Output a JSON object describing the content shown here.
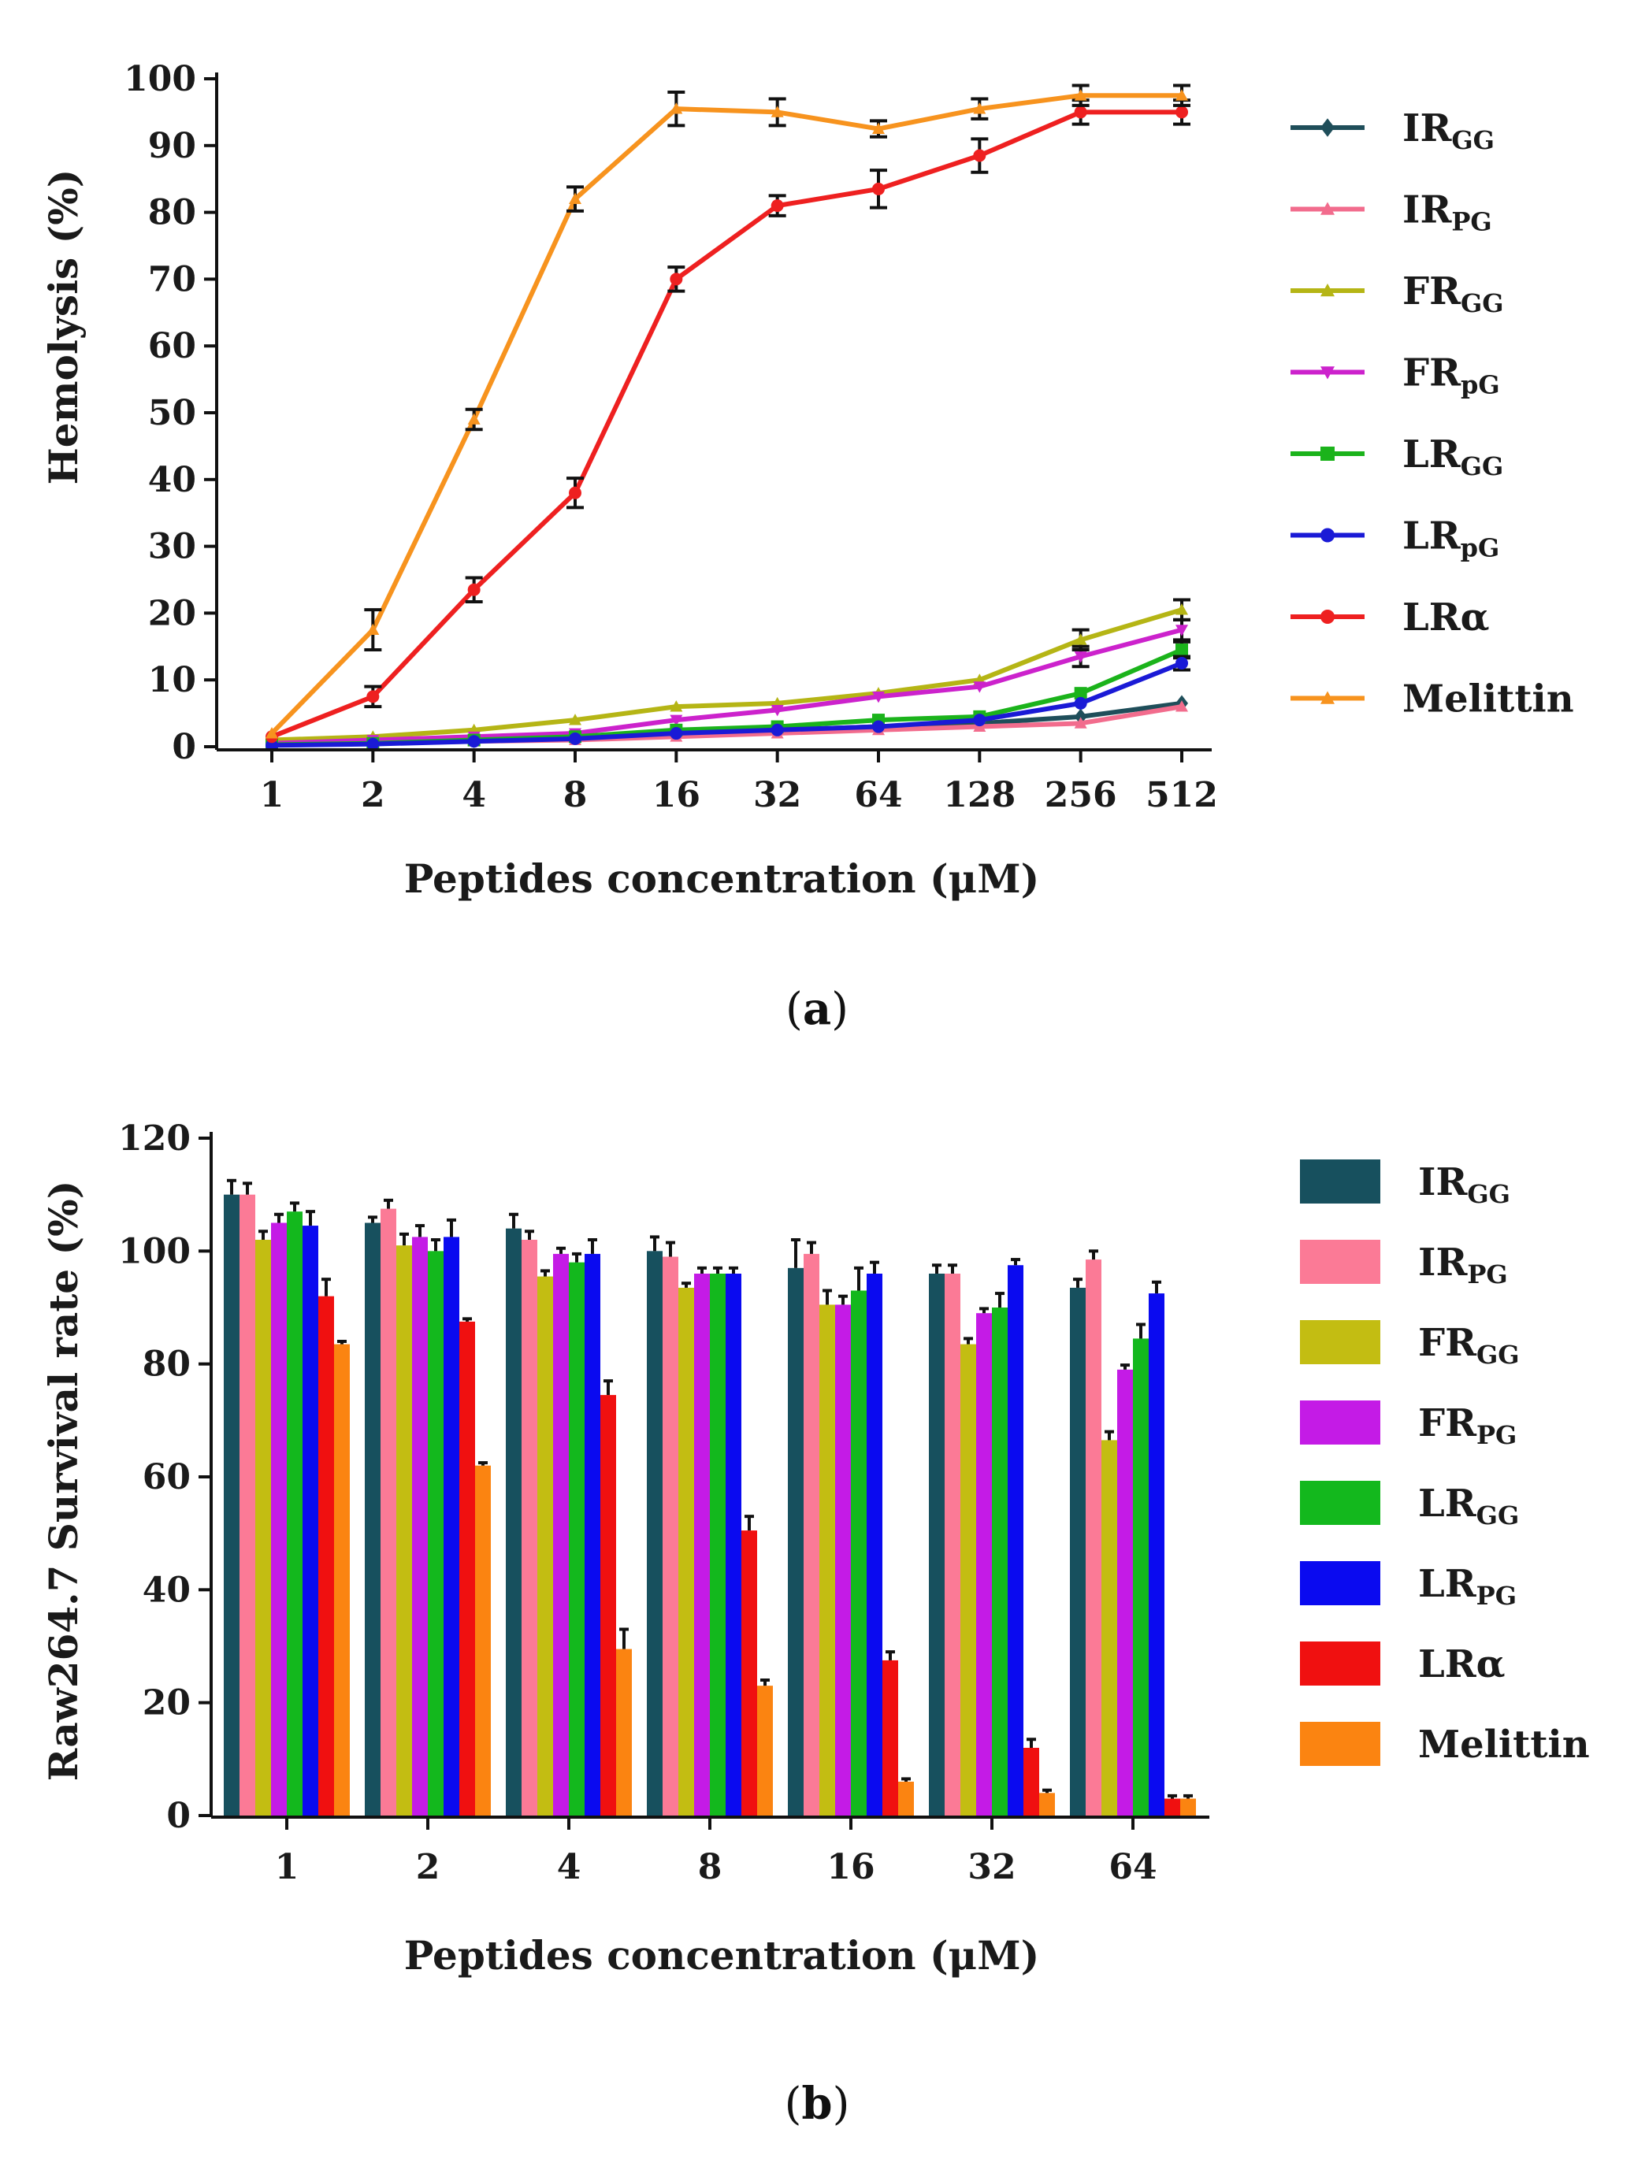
{
  "chart_data": [
    {
      "type": "line",
      "panel": "(a)",
      "panel_bold": "a",
      "ylabel": "Hemolysis (%)",
      "xlabel": "Peptides concentration (μM)",
      "categories": [
        "1",
        "2",
        "4",
        "8",
        "16",
        "32",
        "64",
        "128",
        "256",
        "512"
      ],
      "ylim": [
        0,
        100
      ],
      "yticks": [
        "0",
        "10",
        "20",
        "30",
        "40",
        "50",
        "60",
        "70",
        "80",
        "90",
        "100"
      ],
      "grid": false,
      "legend_position": "right",
      "series": [
        {
          "name": "IR",
          "sub": "GG",
          "color": "#1f4e5a",
          "marker": "diamond",
          "values": [
            0.5,
            0.8,
            1.0,
            1.5,
            2.0,
            2.5,
            3.0,
            3.5,
            4.5,
            6.5
          ],
          "errors": [
            0.3,
            0.3,
            0.3,
            0.3,
            0.4,
            0.4,
            0.4,
            0.5,
            0.5,
            0.6
          ]
        },
        {
          "name": "IR",
          "sub": "PG",
          "color": "#f26c8d",
          "marker": "triangle",
          "values": [
            0.3,
            0.5,
            0.8,
            1.0,
            1.5,
            2.0,
            2.5,
            3.0,
            3.5,
            6.0
          ],
          "errors": [
            0.2,
            0.3,
            0.3,
            0.3,
            0.3,
            0.3,
            0.4,
            0.4,
            0.5,
            0.6
          ]
        },
        {
          "name": "FR",
          "sub": "GG",
          "color": "#b5b515",
          "marker": "triangle",
          "values": [
            1.0,
            1.5,
            2.5,
            4.0,
            6.0,
            6.5,
            8.0,
            10.0,
            16.0,
            20.5
          ],
          "errors": [
            0.3,
            0.4,
            0.4,
            0.5,
            0.5,
            0.6,
            0.6,
            0.7,
            1.5,
            1.5
          ]
        },
        {
          "name": "FR",
          "sub": "pG",
          "color": "#cc22cc",
          "marker": "triangle-down",
          "values": [
            0.5,
            1.0,
            1.5,
            2.0,
            4.0,
            5.5,
            7.5,
            9.0,
            13.5,
            17.5
          ],
          "errors": [
            0.3,
            0.3,
            0.4,
            0.4,
            0.5,
            0.5,
            0.6,
            0.6,
            1.5,
            1.5
          ]
        },
        {
          "name": "LR",
          "sub": "GG",
          "color": "#1bb31b",
          "marker": "square",
          "values": [
            0.3,
            0.5,
            1.0,
            1.5,
            2.5,
            3.0,
            4.0,
            4.5,
            8.0,
            14.5
          ],
          "errors": [
            0.2,
            0.3,
            0.3,
            0.3,
            0.4,
            0.4,
            0.5,
            0.5,
            0.8,
            1.2
          ]
        },
        {
          "name": "LR",
          "sub": "pG",
          "color": "#1a1ad6",
          "marker": "circle",
          "values": [
            0.2,
            0.4,
            0.8,
            1.2,
            2.0,
            2.5,
            3.0,
            4.0,
            6.5,
            12.5
          ],
          "errors": [
            0.2,
            0.2,
            0.3,
            0.3,
            0.3,
            0.4,
            0.4,
            0.5,
            0.8,
            1.0
          ]
        },
        {
          "name": "LRα",
          "sub": "",
          "color": "#ee2020",
          "marker": "circle",
          "values": [
            1.5,
            7.5,
            23.5,
            38.0,
            70.0,
            81.0,
            83.5,
            88.5,
            95.0,
            95.0
          ],
          "errors": [
            0.5,
            1.5,
            1.8,
            2.2,
            1.8,
            1.5,
            2.8,
            2.5,
            1.8,
            1.8
          ]
        },
        {
          "name": "Melittin",
          "sub": "",
          "color": "#f7931e",
          "marker": "triangle",
          "values": [
            2.0,
            17.5,
            49.0,
            82.0,
            95.5,
            95.0,
            92.5,
            95.5,
            97.5,
            97.5
          ],
          "errors": [
            0.5,
            3.0,
            1.5,
            1.8,
            2.5,
            2.0,
            1.2,
            1.5,
            1.5,
            1.5
          ]
        }
      ]
    },
    {
      "type": "bar",
      "panel": "(b)",
      "panel_bold": "b",
      "ylabel": "Raw264.7 Survival rate (%)",
      "xlabel": "Peptides concentration (μM)",
      "categories": [
        "1",
        "2",
        "4",
        "8",
        "16",
        "32",
        "64"
      ],
      "ylim": [
        0,
        120
      ],
      "yticks": [
        "0",
        "20",
        "40",
        "60",
        "80",
        "100",
        "120"
      ],
      "grid": false,
      "legend_position": "right",
      "series": [
        {
          "name": "IR",
          "sub": "GG",
          "color": "#17505e",
          "values": [
            110,
            105,
            104,
            100,
            97,
            96,
            93.5
          ],
          "errors": [
            2.5,
            1.0,
            2.5,
            2.5,
            5.0,
            1.5,
            1.5
          ]
        },
        {
          "name": "IR",
          "sub": "PG",
          "color": "#fb7a96",
          "values": [
            110,
            107.5,
            102,
            99,
            99.5,
            96,
            98.5
          ],
          "errors": [
            2.0,
            1.5,
            1.5,
            2.5,
            2.0,
            1.5,
            1.5
          ]
        },
        {
          "name": "FR",
          "sub": "GG",
          "color": "#c3bd12",
          "values": [
            102,
            101,
            95.5,
            93.5,
            90.5,
            83.5,
            66.5
          ],
          "errors": [
            1.5,
            2.0,
            1.0,
            0.8,
            2.5,
            1.0,
            1.5
          ]
        },
        {
          "name": "FR",
          "sub": "PG",
          "color": "#c41be6",
          "values": [
            105,
            102.5,
            99.5,
            96,
            90.5,
            89,
            79
          ],
          "errors": [
            1.5,
            2.0,
            1.0,
            1.0,
            1.5,
            0.8,
            0.8
          ]
        },
        {
          "name": "LR",
          "sub": "GG",
          "color": "#13b81d",
          "values": [
            107,
            100,
            98,
            96,
            93,
            90,
            84.5
          ],
          "errors": [
            1.5,
            2.0,
            1.5,
            1.0,
            4.0,
            2.5,
            2.5
          ]
        },
        {
          "name": "LR",
          "sub": "PG",
          "color": "#0a0af0",
          "values": [
            104.5,
            102.5,
            99.5,
            96,
            96,
            97.5,
            92.5
          ],
          "errors": [
            2.5,
            3.0,
            2.5,
            1.0,
            2.0,
            1.0,
            2.0
          ]
        },
        {
          "name": "LRα",
          "sub": "",
          "color": "#f01010",
          "values": [
            92,
            87.5,
            74.5,
            50.5,
            27.5,
            12,
            3
          ],
          "errors": [
            3.0,
            0.5,
            2.5,
            2.5,
            1.5,
            1.5,
            0.5
          ]
        },
        {
          "name": "Melittin",
          "sub": "",
          "color": "#fb8411",
          "values": [
            83.5,
            62,
            29.5,
            23,
            6,
            4,
            3
          ],
          "errors": [
            0.5,
            0.5,
            3.5,
            1.0,
            0.5,
            0.5,
            0.5
          ]
        }
      ]
    }
  ]
}
